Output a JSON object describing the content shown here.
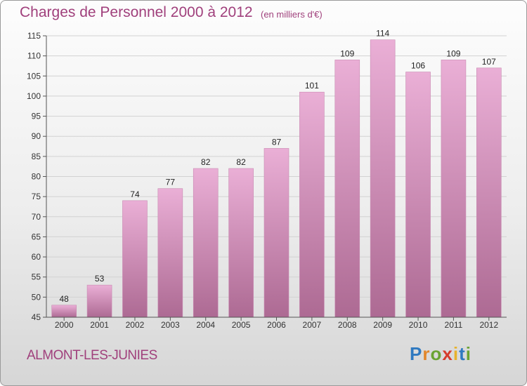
{
  "title": "Charges de Personnel 2000 à 2012",
  "subtitle": "(en milliers d'€)",
  "town": "ALMONT-LES-JUNIES",
  "logo": {
    "letters": [
      "P",
      "r",
      "o",
      "x",
      "i",
      "t",
      "i"
    ],
    "colors": [
      "#2f79c0",
      "#e2862a",
      "#6aa332",
      "#d63c2c",
      "#e7b22a",
      "#2f79c0",
      "#6aa332"
    ]
  },
  "colors": {
    "bar_light": "#eaafd6",
    "bar_dark": "#ad6a93",
    "grid": "#d2d2d2",
    "accent": "#a0407c"
  },
  "chart_data": {
    "type": "bar",
    "title": "Charges de Personnel 2000 à 2012",
    "subtitle": "(en milliers d'€)",
    "categories": [
      "2000",
      "2001",
      "2002",
      "2003",
      "2004",
      "2005",
      "2006",
      "2007",
      "2008",
      "2009",
      "2010",
      "2011",
      "2012"
    ],
    "values": [
      48,
      53,
      74,
      77,
      82,
      82,
      87,
      101,
      109,
      114,
      106,
      109,
      107
    ],
    "ylim": [
      45,
      115
    ],
    "yticks": [
      45,
      50,
      55,
      60,
      65,
      70,
      75,
      80,
      85,
      90,
      95,
      100,
      105,
      110,
      115
    ],
    "grid": true
  }
}
